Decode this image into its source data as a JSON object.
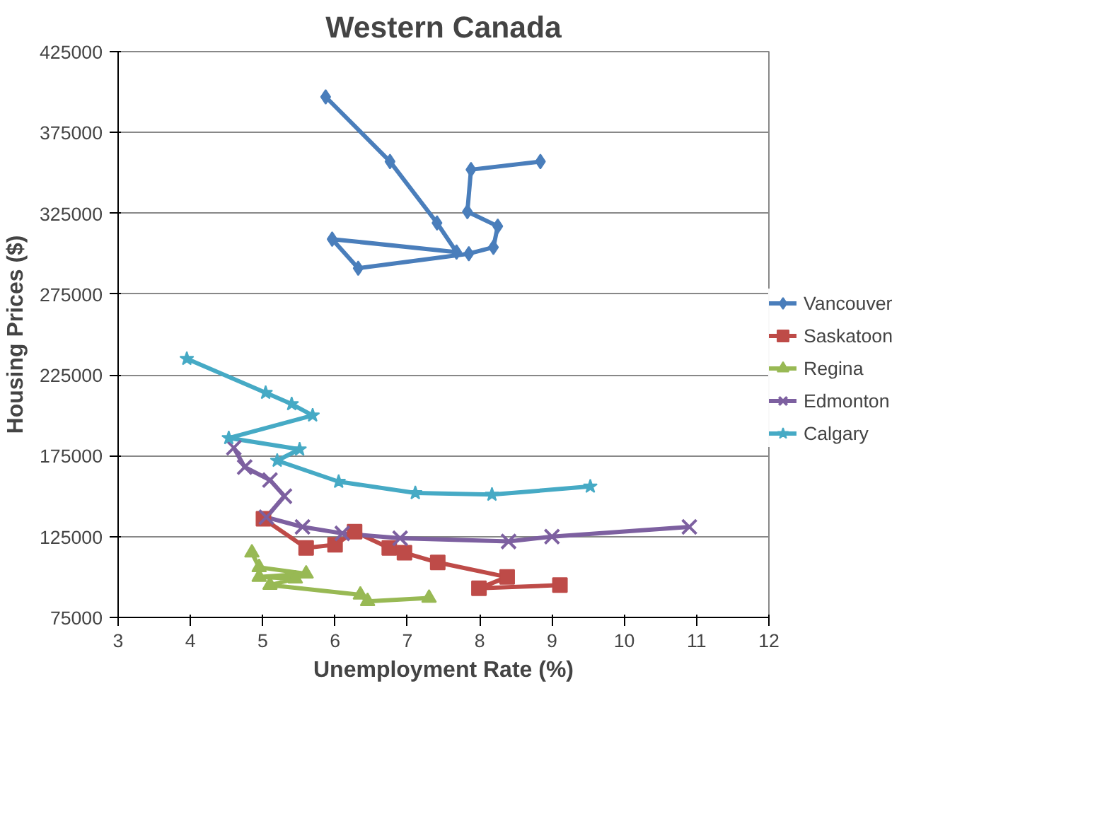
{
  "chart_data": {
    "type": "line",
    "title": "Western Canada",
    "xlabel": "Unemployment Rate (%)",
    "ylabel": "Housing Prices ($)",
    "xlim": [
      3,
      12
    ],
    "xticks": [
      3,
      4,
      5,
      6,
      7,
      8,
      9,
      10,
      11,
      12
    ],
    "ylim": [
      75000,
      425000
    ],
    "yticks": [
      75000,
      125000,
      175000,
      225000,
      275000,
      325000,
      375000,
      425000
    ],
    "grid": "y",
    "legend": "right",
    "line_style": "solid",
    "series": [
      {
        "name": "Vancouver",
        "color": "#4a7ebb",
        "marker": "diamond",
        "x": [
          8.84,
          7.88,
          7.83,
          8.25,
          8.19,
          7.85,
          6.32,
          5.96,
          7.68,
          7.41,
          6.76,
          5.87
        ],
        "values": [
          357000,
          352000,
          326000,
          317000,
          304000,
          300000,
          291000,
          309000,
          301000,
          319000,
          357000,
          397000
        ]
      },
      {
        "name": "Saskatoon",
        "color": "#be4b48",
        "marker": "square",
        "x": [
          5.01,
          5.6,
          6.0,
          6.27,
          6.75,
          6.96,
          7.42,
          8.38,
          7.99,
          9.11
        ],
        "values": [
          136000,
          118000,
          120000,
          128000,
          118000,
          115000,
          109000,
          100000,
          93000,
          95000
        ]
      },
      {
        "name": "Regina",
        "color": "#98b954",
        "marker": "triangle",
        "x": [
          4.85,
          4.95,
          5.6,
          4.95,
          5.45,
          5.1,
          6.35,
          6.45,
          7.3
        ],
        "values": [
          115000,
          106000,
          102000,
          100000,
          99000,
          95000,
          89000,
          85000,
          87000
        ]
      },
      {
        "name": "Edmonton",
        "color": "#7d60a0",
        "marker": "cross",
        "x": [
          4.6,
          4.75,
          5.1,
          5.3,
          5.05,
          5.55,
          6.1,
          6.9,
          8.4,
          9.0,
          10.9
        ],
        "values": [
          180000,
          168000,
          160000,
          150000,
          137000,
          131000,
          127000,
          124000,
          122000,
          125000,
          131000
        ]
      },
      {
        "name": "Calgary",
        "color": "#46aac5",
        "marker": "star",
        "x": [
          3.95,
          5.04,
          5.4,
          5.69,
          4.53,
          5.51,
          5.2,
          6.05,
          7.11,
          8.17,
          9.53
        ],
        "values": [
          235000,
          214000,
          207000,
          200000,
          186000,
          179000,
          172000,
          159000,
          152000,
          151000,
          156000
        ]
      }
    ]
  }
}
